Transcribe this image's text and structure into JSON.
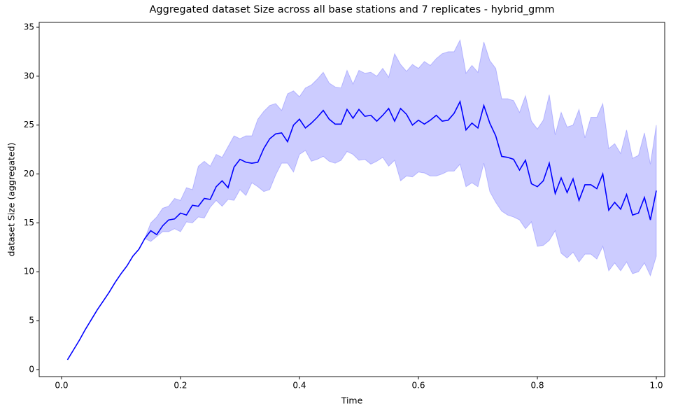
{
  "chart_data": {
    "type": "line",
    "title": "Aggregated dataset Size across all base stations and 7 replicates - hybrid_gmm",
    "xlabel": "Time",
    "ylabel": "dataset Size (aggregated)",
    "color": "#0000ff",
    "band_color": "#0000ff",
    "x": [
      0.01,
      0.02,
      0.03,
      0.04,
      0.05,
      0.06,
      0.07,
      0.08,
      0.09,
      0.1,
      0.11,
      0.12,
      0.13,
      0.14,
      0.15,
      0.16,
      0.17,
      0.18,
      0.19,
      0.2,
      0.21,
      0.22,
      0.23,
      0.24,
      0.25,
      0.26,
      0.27,
      0.28,
      0.29,
      0.3,
      0.31,
      0.32,
      0.33,
      0.34,
      0.35,
      0.36,
      0.37,
      0.38,
      0.39,
      0.4,
      0.41,
      0.42,
      0.43,
      0.44,
      0.45,
      0.46,
      0.47,
      0.48,
      0.49,
      0.5,
      0.51,
      0.52,
      0.53,
      0.54,
      0.55,
      0.56,
      0.57,
      0.58,
      0.59,
      0.6,
      0.61,
      0.62,
      0.63,
      0.64,
      0.65,
      0.66,
      0.67,
      0.68,
      0.69,
      0.7,
      0.71,
      0.72,
      0.73,
      0.74,
      0.75,
      0.76,
      0.77,
      0.78,
      0.79,
      0.8,
      0.81,
      0.82,
      0.83,
      0.84,
      0.85,
      0.86,
      0.87,
      0.88,
      0.89,
      0.9,
      0.91,
      0.92,
      0.93,
      0.94,
      0.95,
      0.96,
      0.97,
      0.98,
      0.99,
      1.0
    ],
    "values": [
      1.0,
      2.0,
      3.0,
      4.1,
      5.1,
      6.1,
      7.0,
      7.9,
      8.9,
      9.8,
      10.6,
      11.6,
      12.3,
      13.4,
      14.2,
      13.8,
      14.7,
      15.3,
      15.4,
      16.0,
      15.8,
      16.8,
      16.7,
      17.5,
      17.4,
      18.7,
      19.3,
      18.6,
      20.7,
      21.5,
      21.2,
      21.1,
      21.2,
      22.6,
      23.6,
      24.1,
      24.2,
      23.3,
      25.0,
      25.6,
      24.7,
      25.2,
      25.8,
      26.5,
      25.6,
      25.1,
      25.1,
      26.6,
      25.7,
      26.6,
      25.9,
      26.0,
      25.4,
      26.0,
      26.7,
      25.4,
      26.7,
      26.1,
      25.0,
      25.5,
      25.1,
      25.5,
      26.0,
      25.4,
      25.5,
      26.2,
      27.4,
      24.5,
      25.2,
      24.7,
      27.0,
      25.2,
      23.9,
      21.8,
      21.7,
      21.5,
      20.4,
      21.4,
      19.0,
      18.7,
      19.3,
      21.1,
      18.0,
      19.6,
      18.1,
      19.5,
      17.3,
      18.9,
      18.9,
      18.5,
      20.0,
      16.3,
      17.1,
      16.4,
      17.9,
      15.8,
      16.0,
      17.6,
      15.3,
      18.3
    ],
    "upper": [
      1.0,
      2.0,
      3.0,
      4.1,
      5.1,
      6.1,
      7.0,
      7.9,
      8.9,
      9.8,
      10.6,
      11.6,
      12.3,
      13.4,
      15.0,
      15.6,
      16.5,
      16.7,
      17.5,
      17.3,
      18.6,
      18.4,
      20.8,
      21.3,
      20.8,
      22.0,
      21.7,
      22.8,
      23.9,
      23.6,
      23.9,
      23.9,
      25.6,
      26.4,
      27.0,
      27.2,
      26.5,
      28.2,
      28.5,
      27.9,
      28.8,
      29.1,
      29.7,
      30.4,
      29.3,
      28.9,
      28.8,
      30.6,
      29.2,
      30.6,
      30.3,
      30.4,
      30.0,
      30.8,
      29.9,
      32.3,
      31.2,
      30.5,
      31.2,
      30.8,
      31.5,
      31.1,
      31.8,
      32.3,
      32.5,
      32.5,
      33.7,
      30.3,
      31.1,
      30.4,
      33.5,
      31.6,
      30.8,
      27.7,
      27.7,
      27.5,
      26.3,
      28.0,
      25.4,
      24.6,
      25.5,
      28.1,
      24.0,
      26.3,
      24.8,
      25.0,
      26.6,
      23.7,
      25.8,
      25.8,
      27.2,
      22.6,
      23.1,
      22.1,
      24.5,
      21.6,
      21.9,
      24.2,
      21.0,
      25.0
    ],
    "lower": [
      1.0,
      2.0,
      3.0,
      4.1,
      5.1,
      6.1,
      7.0,
      7.9,
      8.9,
      9.8,
      10.6,
      11.6,
      12.3,
      13.4,
      13.1,
      13.6,
      14.1,
      14.1,
      14.4,
      14.1,
      15.1,
      15.0,
      15.6,
      15.5,
      16.6,
      17.3,
      16.7,
      17.4,
      17.3,
      18.4,
      17.8,
      19.1,
      18.7,
      18.2,
      18.4,
      19.9,
      21.1,
      21.1,
      20.2,
      22.0,
      22.4,
      21.3,
      21.5,
      21.8,
      21.3,
      21.1,
      21.4,
      22.3,
      22.0,
      21.4,
      21.5,
      21.0,
      21.3,
      21.7,
      20.8,
      21.4,
      19.3,
      19.8,
      19.7,
      20.2,
      20.1,
      19.8,
      19.8,
      20.0,
      20.3,
      20.3,
      21.0,
      18.7,
      19.1,
      18.7,
      21.1,
      18.2,
      17.1,
      16.2,
      15.8,
      15.6,
      15.3,
      14.4,
      15.1,
      12.6,
      12.7,
      13.2,
      14.2,
      11.9,
      11.4,
      12.0,
      11.0,
      11.8,
      11.8,
      11.3,
      12.6,
      10.1,
      10.9,
      10.1,
      11.0,
      9.8,
      10.0,
      10.9,
      9.6,
      11.6
    ],
    "xlim": [
      -0.0376,
      1.0141
    ],
    "ylim": [
      -0.72,
      35.5
    ],
    "xticks": [
      {
        "value": 0.0,
        "label": "0.0"
      },
      0.2,
      0.4,
      0.6,
      0.8,
      {
        "value": 1.0,
        "label": "1.0"
      }
    ],
    "yticks": [
      0,
      5,
      10,
      15,
      20,
      25,
      30,
      35
    ]
  }
}
